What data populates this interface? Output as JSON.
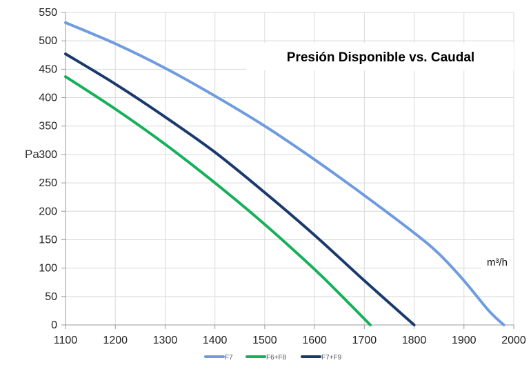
{
  "chart_data": {
    "type": "line",
    "title": "Presión Disponible vs. Caudal",
    "xlabel": "m³/h",
    "ylabel": "Pa",
    "xlim": [
      1100,
      2000
    ],
    "ylim": [
      0,
      550
    ],
    "x_ticks": [
      1100,
      1200,
      1300,
      1400,
      1500,
      1600,
      1700,
      1800,
      1900,
      2000
    ],
    "y_ticks": [
      0,
      50,
      100,
      150,
      200,
      250,
      300,
      350,
      400,
      450,
      500,
      550
    ],
    "grid": true,
    "legend_position": "bottom",
    "title_color": "#1f6fb5",
    "series": [
      {
        "name": "F7",
        "color": "#6f9be0",
        "points": [
          [
            1100,
            532
          ],
          [
            1200,
            495
          ],
          [
            1300,
            452
          ],
          [
            1400,
            403
          ],
          [
            1500,
            350
          ],
          [
            1600,
            291
          ],
          [
            1700,
            228
          ],
          [
            1800,
            162
          ],
          [
            1850,
            125
          ],
          [
            1900,
            78
          ],
          [
            1950,
            25
          ],
          [
            1980,
            0
          ]
        ]
      },
      {
        "name": "F6+F8",
        "color": "#16b05a",
        "points": [
          [
            1100,
            437
          ],
          [
            1200,
            380
          ],
          [
            1300,
            318
          ],
          [
            1400,
            250
          ],
          [
            1500,
            177
          ],
          [
            1600,
            98
          ],
          [
            1650,
            55
          ],
          [
            1712,
            0
          ]
        ]
      },
      {
        "name": "F7+F9",
        "color": "#1a3a6e",
        "points": [
          [
            1100,
            477
          ],
          [
            1200,
            424
          ],
          [
            1300,
            366
          ],
          [
            1400,
            304
          ],
          [
            1500,
            233
          ],
          [
            1600,
            158
          ],
          [
            1700,
            78
          ],
          [
            1800,
            0
          ]
        ]
      }
    ]
  }
}
